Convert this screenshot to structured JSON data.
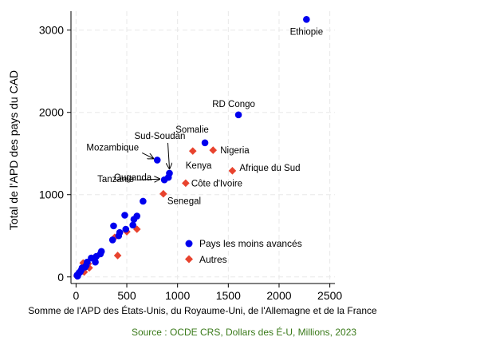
{
  "source_note": "Source : OCDE CRS, Dollars des É-U, Millions, 2023",
  "colors": {
    "pmd": "#0000ee",
    "autres": "#e8432e",
    "grid": "#e8e8e8"
  },
  "chart_data": {
    "type": "scatter",
    "title": "",
    "xlabel": "Somme de l'APD des États-Unis, du Royaume-Uni, de l'Allemagne et de la France",
    "ylabel": "Total de l'APD des pays du CAD",
    "xlim": [
      -50,
      2550
    ],
    "ylim": [
      -80,
      3230
    ],
    "xticks": [
      0,
      500,
      1000,
      1500,
      2000,
      2500
    ],
    "yticks": [
      0,
      1000,
      2000,
      3000
    ],
    "grid": true,
    "legend_position": "bottom-right",
    "series": [
      {
        "name": "Pays les moins avancés",
        "marker": "circle",
        "points": [
          {
            "x": 2270,
            "y": 3130,
            "label": "Ethiopie"
          },
          {
            "x": 1600,
            "y": 1970,
            "label": "RD Congo"
          },
          {
            "x": 1270,
            "y": 1630,
            "label": "Somalie"
          },
          {
            "x": 800,
            "y": 1420,
            "label": "Mozambique"
          },
          {
            "x": 920,
            "y": 1260,
            "label": "Sud-Soudan"
          },
          {
            "x": 910,
            "y": 1210,
            "label": "Ouganda"
          },
          {
            "x": 870,
            "y": 1180,
            "label": "Tanzanie"
          },
          {
            "x": 660,
            "y": 920
          },
          {
            "x": 600,
            "y": 740
          },
          {
            "x": 570,
            "y": 700
          },
          {
            "x": 560,
            "y": 630
          },
          {
            "x": 480,
            "y": 750
          },
          {
            "x": 490,
            "y": 580
          },
          {
            "x": 430,
            "y": 540
          },
          {
            "x": 420,
            "y": 500
          },
          {
            "x": 370,
            "y": 620
          },
          {
            "x": 360,
            "y": 450
          },
          {
            "x": 250,
            "y": 310
          },
          {
            "x": 240,
            "y": 280
          },
          {
            "x": 200,
            "y": 250
          },
          {
            "x": 150,
            "y": 230
          },
          {
            "x": 190,
            "y": 180
          },
          {
            "x": 110,
            "y": 180
          },
          {
            "x": 100,
            "y": 140
          },
          {
            "x": 90,
            "y": 120
          },
          {
            "x": 60,
            "y": 110
          },
          {
            "x": 50,
            "y": 80
          },
          {
            "x": 40,
            "y": 60
          },
          {
            "x": 30,
            "y": 50
          },
          {
            "x": 20,
            "y": 30
          },
          {
            "x": 10,
            "y": 20
          },
          {
            "x": 15,
            "y": 10
          }
        ]
      },
      {
        "name": "Autres",
        "marker": "diamond",
        "points": [
          {
            "x": 1350,
            "y": 1540,
            "label": "Nigeria"
          },
          {
            "x": 1150,
            "y": 1530,
            "label": "Kenya"
          },
          {
            "x": 1540,
            "y": 1290,
            "label": "Afrique du Sud"
          },
          {
            "x": 1080,
            "y": 1140,
            "label": "Côte d'Ivoire"
          },
          {
            "x": 860,
            "y": 1010,
            "label": "Senegal"
          },
          {
            "x": 600,
            "y": 580
          },
          {
            "x": 500,
            "y": 550
          },
          {
            "x": 380,
            "y": 480
          },
          {
            "x": 410,
            "y": 260
          },
          {
            "x": 120,
            "y": 160
          },
          {
            "x": 100,
            "y": 130
          },
          {
            "x": 70,
            "y": 170
          },
          {
            "x": 130,
            "y": 110
          },
          {
            "x": 80,
            "y": 60
          },
          {
            "x": 40,
            "y": 70
          },
          {
            "x": 20,
            "y": 30
          },
          {
            "x": 10,
            "y": 10
          }
        ]
      }
    ],
    "annotations": [
      {
        "text": "Ethiopie",
        "point": [
          2270,
          3130
        ]
      },
      {
        "text": "RD Congo",
        "point": [
          1600,
          1970
        ]
      },
      {
        "text": "Somalie",
        "point": [
          1270,
          1630
        ]
      },
      {
        "text": "Nigeria",
        "point": [
          1350,
          1540
        ]
      },
      {
        "text": "Kenya",
        "point": [
          1150,
          1530
        ]
      },
      {
        "text": "Afrique du Sud",
        "point": [
          1540,
          1290
        ]
      },
      {
        "text": "Côte d'Ivoire",
        "point": [
          1080,
          1140
        ]
      },
      {
        "text": "Senegal",
        "point": [
          860,
          1010
        ]
      },
      {
        "text": "Mozambique",
        "point": [
          800,
          1420
        ],
        "arrow": true
      },
      {
        "text": "Sud-Soudan",
        "point": [
          920,
          1260
        ],
        "arrow": true
      },
      {
        "text": "Ouganda",
        "point": [
          910,
          1210
        ]
      },
      {
        "text": "Tanzanie",
        "point": [
          870,
          1180
        ],
        "arrow": true
      }
    ]
  }
}
